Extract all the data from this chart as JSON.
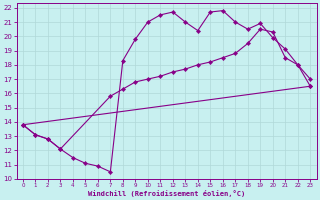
{
  "xlabel": "Windchill (Refroidissement éolien,°C)",
  "bg_color": "#c8f0f0",
  "grid_color": "#b0d8d8",
  "line_color": "#880088",
  "xlim": [
    -0.5,
    23.5
  ],
  "ylim": [
    10,
    22.3
  ],
  "xticks": [
    0,
    1,
    2,
    3,
    4,
    5,
    6,
    7,
    8,
    9,
    10,
    11,
    12,
    13,
    14,
    15,
    16,
    17,
    18,
    19,
    20,
    21,
    22,
    23
  ],
  "yticks": [
    10,
    11,
    12,
    13,
    14,
    15,
    16,
    17,
    18,
    19,
    20,
    21,
    22
  ],
  "line1_x": [
    0,
    1,
    2,
    3,
    4,
    5,
    6,
    7,
    8,
    9,
    10,
    11,
    12,
    13,
    14,
    15,
    16,
    17,
    18,
    19,
    20,
    21,
    22,
    23
  ],
  "line1_y": [
    13.8,
    13.1,
    12.8,
    12.1,
    11.5,
    11.1,
    10.9,
    10.5,
    18.3,
    19.8,
    21.0,
    21.5,
    21.7,
    21.0,
    20.4,
    21.7,
    21.8,
    21.0,
    20.5,
    20.9,
    19.9,
    19.1,
    18.0,
    16.5
  ],
  "line2_x": [
    0,
    1,
    2,
    3,
    7,
    8,
    9,
    10,
    11,
    12,
    13,
    14,
    15,
    16,
    17,
    18,
    19,
    20,
    21,
    22,
    23
  ],
  "line2_y": [
    13.8,
    13.1,
    12.8,
    12.1,
    15.8,
    16.3,
    16.8,
    17.0,
    17.2,
    17.5,
    17.7,
    18.0,
    18.2,
    18.5,
    18.8,
    19.5,
    20.5,
    20.3,
    18.5,
    18.0,
    17.0
  ],
  "line3_x": [
    0,
    23
  ],
  "line3_y": [
    13.8,
    16.5
  ]
}
